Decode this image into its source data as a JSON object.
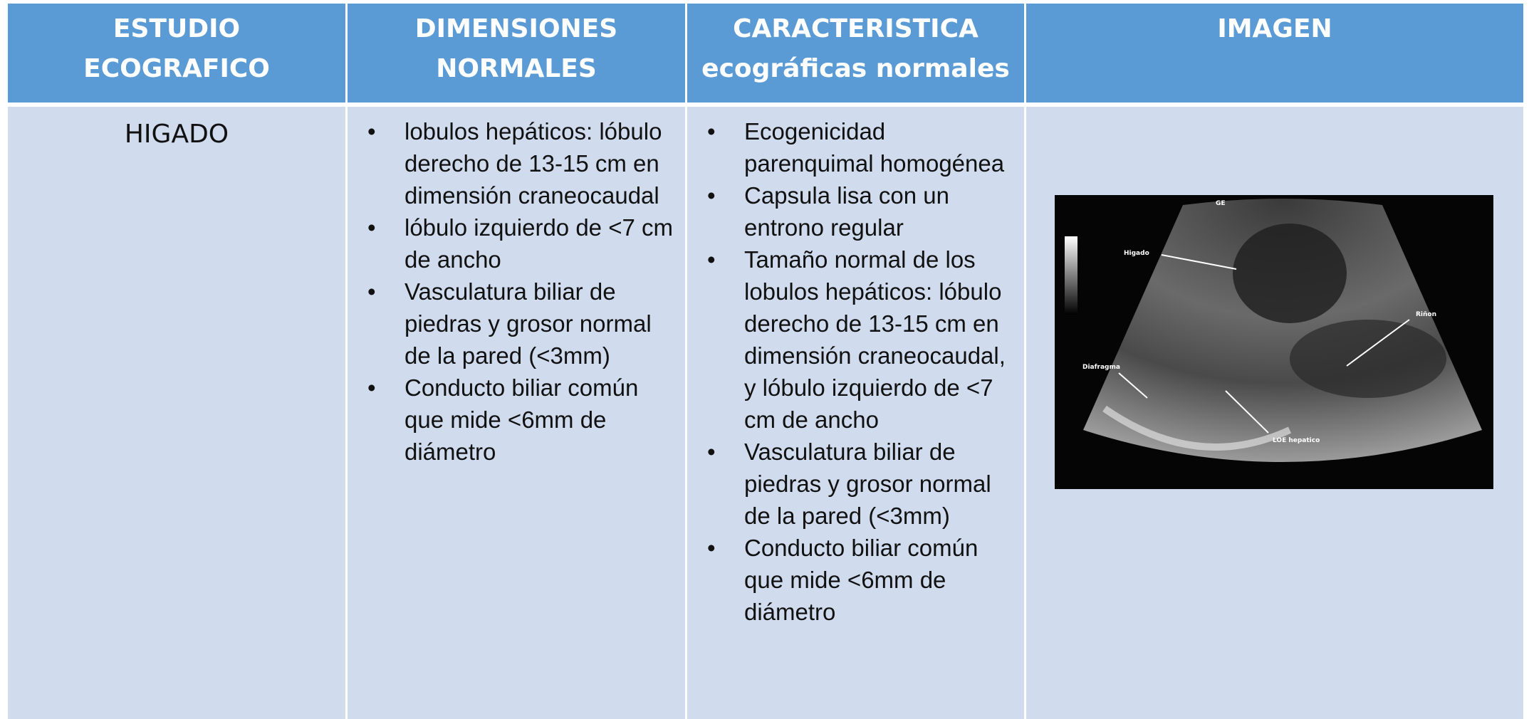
{
  "table": {
    "headers": [
      [
        "ESTUDIO",
        "ECOGRAFICO"
      ],
      [
        "DIMENSIONES",
        "NORMALES"
      ],
      [
        "CARACTERISTICA",
        "ecográficas normales"
      ],
      [
        "IMAGEN"
      ]
    ],
    "study": "HIGADO",
    "dimensions": [
      "lobulos hepáticos: lóbulo derecho de 13-15 cm en dimensión craneocaudal",
      "lóbulo izquierdo de <7 cm de ancho",
      "Vasculatura biliar de piedras y grosor normal de la pared (<3mm)",
      "Conducto biliar común que mide <6mm de diámetro"
    ],
    "characteristics": [
      "Ecogenicidad parenquimal homogénea",
      "Capsula lisa con un entrono regular",
      "Tamaño normal de los lobulos hepáticos: lóbulo derecho de 13-15 cm en dimensión craneocaudal, y lóbulo izquierdo de <7 cm de ancho",
      "Vasculatura biliar de piedras y grosor normal de la pared (<3mm)",
      "Conducto biliar común que mide <6mm de diámetro"
    ],
    "image_labels": [
      "GE",
      "Higado",
      "Riñon",
      "Diafragma",
      "LOE hepatico"
    ]
  }
}
